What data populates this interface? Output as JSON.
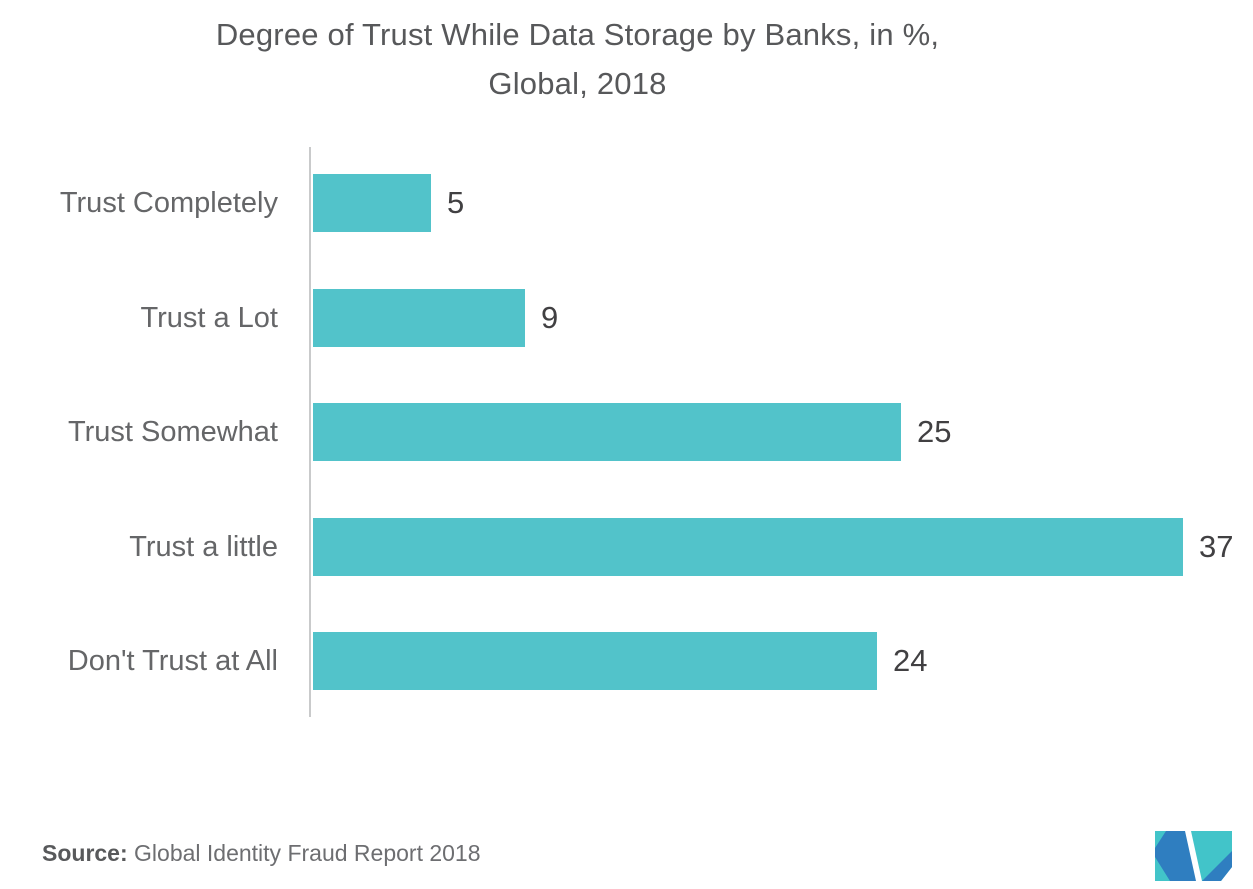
{
  "title": {
    "line1": "Degree of Trust While Data Storage by Banks, in %,",
    "line2": "Global, 2018"
  },
  "chart_data": {
    "type": "bar",
    "orientation": "horizontal",
    "title": "Degree of Trust While Data Storage by Banks, in %, Global, 2018",
    "categories": [
      "Trust Completely",
      "Trust a Lot",
      "Trust Somewhat",
      "Trust a little",
      "Don't Trust at All"
    ],
    "values": [
      5,
      9,
      25,
      37,
      24
    ],
    "unit": "%",
    "xlim": [
      0,
      40
    ],
    "grid": false,
    "legend": false,
    "bar_color": "#52C3CA",
    "category_label_color": "#656668",
    "value_label_color": "#414042",
    "axis_line_color": "#C9CACB"
  },
  "source": {
    "label": "Source:",
    "text": "Global Identity Fraud Report 2018"
  },
  "logo": {
    "name": "mordor-intelligence-logo",
    "teal": "#42C4C9",
    "blue": "#2F7EC0"
  }
}
